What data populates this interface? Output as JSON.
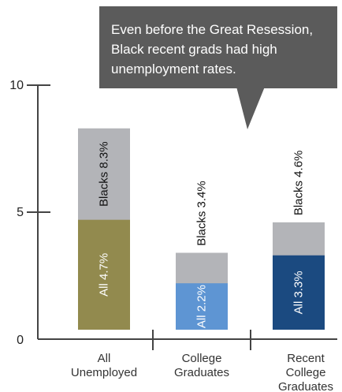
{
  "chart_data": {
    "type": "bar",
    "stacked": false,
    "overlapping": true,
    "ylim": [
      0,
      10
    ],
    "yticks": [
      0,
      5,
      10
    ],
    "grid": false,
    "categories": [
      [
        "All",
        "Unemployed"
      ],
      [
        "College",
        "Graduates"
      ],
      [
        "Recent",
        "College",
        "Graduates"
      ]
    ],
    "series": [
      {
        "name": "Blacks",
        "values": [
          8.3,
          3.4,
          4.6
        ],
        "labels": [
          "Blacks 8.3%",
          "Blacks 3.4%",
          "Blacks 4.6%"
        ],
        "color": "#b3b4b8",
        "label_position": [
          "inside",
          "above",
          "above"
        ]
      },
      {
        "name": "All",
        "values": [
          4.7,
          2.2,
          3.3
        ],
        "labels": [
          "All 4.7%",
          "All 2.2%",
          "All 3.3%"
        ],
        "colors": [
          "#928a4e",
          "#5e95d3",
          "#1b4a80"
        ]
      }
    ],
    "callout": {
      "lines": [
        "Even before the Great Resession,",
        "Black recent grads had high",
        "unemployment rates."
      ],
      "color": "#5b5b5b"
    }
  }
}
